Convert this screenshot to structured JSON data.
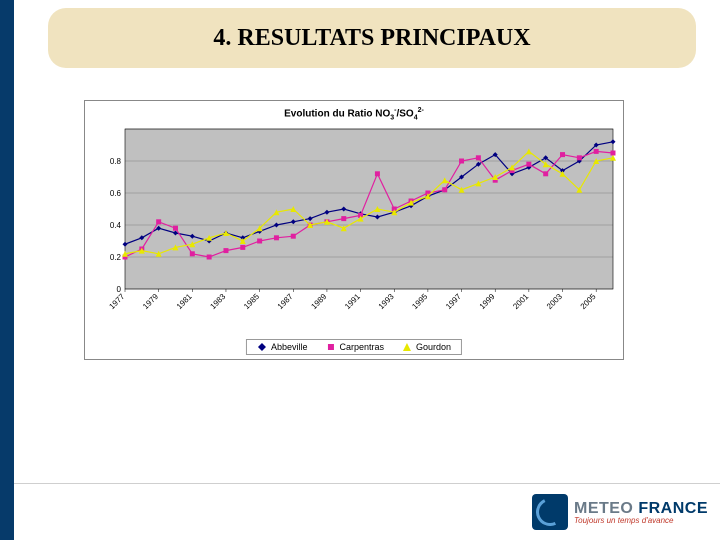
{
  "slide": {
    "title": "4. RESULTATS PRINCIPAUX"
  },
  "chart": {
    "type": "line",
    "title": "Evolution du Ratio NO₃⁻/SO₄²⁻",
    "background_color": "#c0c0c0",
    "plot_background": "#c0c0c0",
    "grid_color": "#808080",
    "border_color": "#888888",
    "xlabels": [
      "1977",
      "1979",
      "1981",
      "1983",
      "1985",
      "1987",
      "1989",
      "1991",
      "1993",
      "1995",
      "1997",
      "1999",
      "2001",
      "2003",
      "2005"
    ],
    "xlabel_years": [
      1977,
      1979,
      1981,
      1983,
      1985,
      1987,
      1989,
      1991,
      1993,
      1995,
      1997,
      1999,
      2001,
      2003,
      2005
    ],
    "ylim": [
      0,
      1.0
    ],
    "yticks": [
      0,
      0.2,
      0.4,
      0.6,
      0.8,
      1.0
    ],
    "ytick_labels": [
      "0",
      "0.2",
      "0.4",
      "0.6",
      "0.8",
      ""
    ],
    "tick_fontsize": 8,
    "tick_color": "#000000",
    "x_range": [
      1977,
      2006
    ],
    "series": [
      {
        "name": "Abbeville",
        "color": "#000080",
        "marker": "diamond",
        "marker_size": 5,
        "line_width": 1.2,
        "years": [
          1977,
          1978,
          1979,
          1980,
          1981,
          1982,
          1983,
          1984,
          1985,
          1986,
          1987,
          1988,
          1989,
          1990,
          1991,
          1992,
          1993,
          1994,
          1995,
          1996,
          1997,
          1998,
          1999,
          2000,
          2001,
          2002,
          2003,
          2004,
          2005,
          2006
        ],
        "values": [
          0.28,
          0.32,
          0.38,
          0.35,
          0.33,
          0.3,
          0.35,
          0.32,
          0.36,
          0.4,
          0.42,
          0.44,
          0.48,
          0.5,
          0.47,
          0.45,
          0.48,
          0.52,
          0.58,
          0.62,
          0.7,
          0.78,
          0.84,
          0.72,
          0.76,
          0.82,
          0.74,
          0.8,
          0.9,
          0.92
        ]
      },
      {
        "name": "Carpentras",
        "color": "#e020a0",
        "marker": "square",
        "marker_size": 5,
        "line_width": 1.2,
        "years": [
          1977,
          1978,
          1979,
          1980,
          1981,
          1982,
          1983,
          1984,
          1985,
          1986,
          1987,
          1988,
          1989,
          1990,
          1991,
          1992,
          1993,
          1994,
          1995,
          1996,
          1997,
          1998,
          1999,
          2000,
          2001,
          2002,
          2003,
          2004,
          2005,
          2006
        ],
        "values": [
          0.2,
          0.25,
          0.42,
          0.38,
          0.22,
          0.2,
          0.24,
          0.26,
          0.3,
          0.32,
          0.33,
          0.4,
          0.42,
          0.44,
          0.46,
          0.72,
          0.5,
          0.55,
          0.6,
          0.62,
          0.8,
          0.82,
          0.68,
          0.74,
          0.78,
          0.72,
          0.84,
          0.82,
          0.86,
          0.85
        ]
      },
      {
        "name": "Gourdon",
        "color": "#e8e800",
        "marker": "triangle",
        "marker_size": 6,
        "line_width": 1.2,
        "years": [
          1977,
          1978,
          1979,
          1980,
          1981,
          1982,
          1983,
          1984,
          1985,
          1986,
          1987,
          1988,
          1989,
          1990,
          1991,
          1992,
          1993,
          1994,
          1995,
          1996,
          1997,
          1998,
          1999,
          2000,
          2001,
          2002,
          2003,
          2004,
          2005,
          2006
        ],
        "values": [
          0.22,
          0.24,
          0.22,
          0.26,
          0.28,
          0.32,
          0.35,
          0.3,
          0.38,
          0.48,
          0.5,
          0.4,
          0.42,
          0.38,
          0.44,
          0.5,
          0.48,
          0.54,
          0.58,
          0.68,
          0.62,
          0.66,
          0.7,
          0.76,
          0.86,
          0.78,
          0.72,
          0.62,
          0.8,
          0.82
        ]
      }
    ],
    "legend_labels": [
      "Abbeville",
      "Carpentras",
      "Gourdon"
    ]
  },
  "logo": {
    "line1a": "METEO",
    "line1b": "FRANCE",
    "tagline": "Toujours un temps d'avance",
    "box_color": "#003a6a",
    "swirl_color": "#5aa0d8",
    "tagline_color": "#c0392b"
  }
}
